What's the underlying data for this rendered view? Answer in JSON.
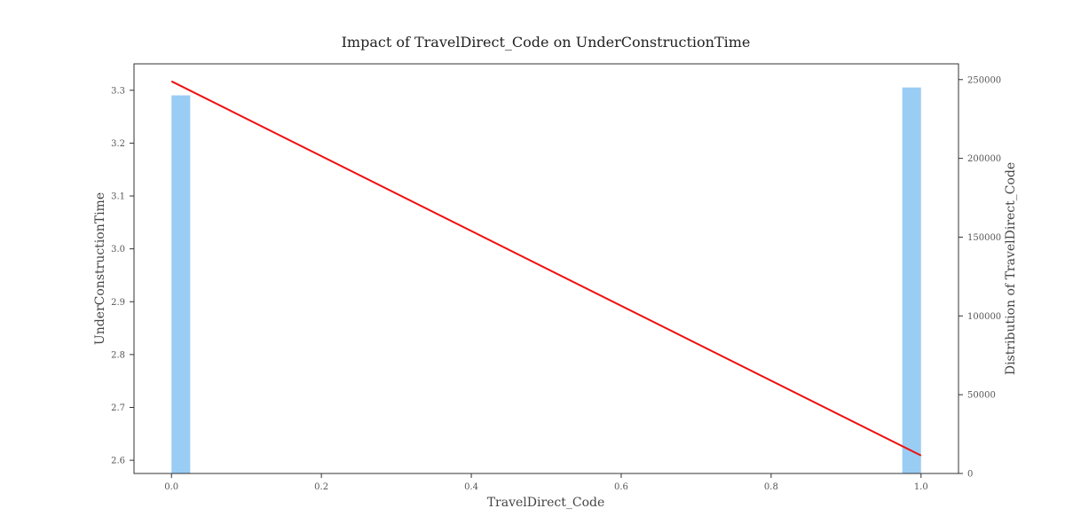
{
  "chart_data": {
    "type": "bar",
    "title": "Impact of TravelDirect_Code on UnderConstructionTime",
    "xlabel": "TravelDirect_Code",
    "ylabel_left": "UnderConstructionTime",
    "ylabel_right": "Distribution of TravelDirect_Code",
    "xlim": [
      -0.05,
      1.05
    ],
    "ylim_left": [
      2.575,
      3.35
    ],
    "ylim_right": [
      0,
      260000
    ],
    "x_ticks": [
      0.0,
      0.2,
      0.4,
      0.6,
      0.8,
      1.0
    ],
    "x_tick_labels": [
      "0.0",
      "0.2",
      "0.4",
      "0.6",
      "0.8",
      "1.0"
    ],
    "y_left_ticks": [
      2.6,
      2.7,
      2.8,
      2.9,
      3.0,
      3.1,
      3.2,
      3.3
    ],
    "y_left_tick_labels": [
      "2.6",
      "2.7",
      "2.8",
      "2.9",
      "3.0",
      "3.1",
      "3.2",
      "3.3"
    ],
    "y_right_ticks": [
      0,
      50000,
      100000,
      150000,
      200000,
      250000
    ],
    "y_right_tick_labels": [
      "0",
      "50000",
      "100000",
      "150000",
      "200000",
      "250000"
    ],
    "histogram": {
      "name": "Distribution of TravelDirect_Code",
      "color": "#99cdf4",
      "bin_width": 0.025,
      "bins": [
        {
          "x_start": 0.0,
          "count": 240000
        },
        {
          "x_start": 0.975,
          "count": 245000
        }
      ]
    },
    "line": {
      "name": "UnderConstructionTime",
      "color": "#ee1111",
      "x": [
        0.0,
        1.0
      ],
      "y": [
        3.317,
        2.609
      ]
    },
    "grid": false
  }
}
